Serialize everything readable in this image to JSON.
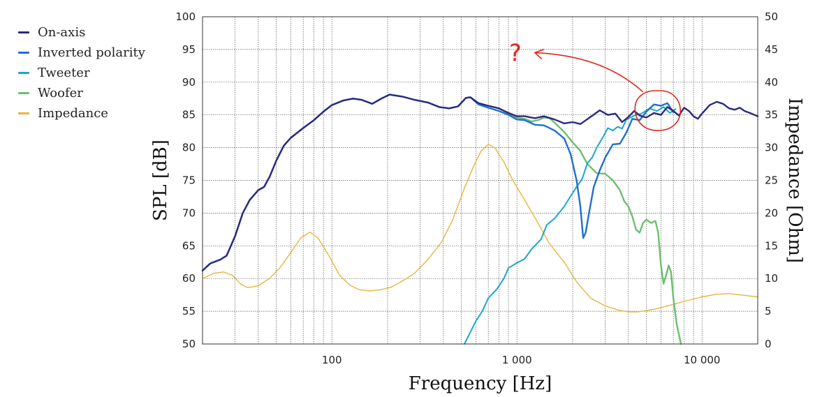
{
  "chart_data": {
    "type": "line",
    "title": "",
    "xlabel": "Frequency [Hz]",
    "ylabel": "SPL [dB]",
    "y2label": "Impedance [Ohm]",
    "xscale": "log",
    "xlim": [
      20,
      20000
    ],
    "ylim": [
      50,
      100
    ],
    "y2lim": [
      0,
      50
    ],
    "grid": true,
    "legend_position": "left-outside",
    "x_tick_labels": [
      {
        "value": 100,
        "label": "100"
      },
      {
        "value": 1000,
        "label": "1 000"
      },
      {
        "value": 10000,
        "label": "10 000"
      }
    ],
    "y_ticks": [
      50,
      55,
      60,
      65,
      70,
      75,
      80,
      85,
      90,
      95,
      100
    ],
    "y2_ticks": [
      0,
      5,
      10,
      15,
      20,
      25,
      30,
      35,
      40,
      45,
      50
    ],
    "series": [
      {
        "name": "On-axis",
        "color": "#2a2a7e",
        "axis": "left",
        "width": 2.4,
        "points": [
          [
            20,
            61.2
          ],
          [
            22,
            62.3
          ],
          [
            25,
            62.9
          ],
          [
            27,
            63.5
          ],
          [
            30,
            66.5
          ],
          [
            33,
            70
          ],
          [
            36,
            72
          ],
          [
            40,
            73.5
          ],
          [
            43,
            74
          ],
          [
            46,
            75.5
          ],
          [
            50,
            78
          ],
          [
            55,
            80.3
          ],
          [
            60,
            81.5
          ],
          [
            70,
            83
          ],
          [
            80,
            84.2
          ],
          [
            90,
            85.5
          ],
          [
            100,
            86.5
          ],
          [
            115,
            87.2
          ],
          [
            130,
            87.5
          ],
          [
            145,
            87.3
          ],
          [
            165,
            86.7
          ],
          [
            185,
            87.5
          ],
          [
            205,
            88.1
          ],
          [
            240,
            87.8
          ],
          [
            280,
            87.3
          ],
          [
            330,
            86.9
          ],
          [
            380,
            86.2
          ],
          [
            430,
            86
          ],
          [
            480,
            86.3
          ],
          [
            530,
            87.6
          ],
          [
            560,
            87.7
          ],
          [
            620,
            86.8
          ],
          [
            700,
            86.4
          ],
          [
            800,
            86
          ],
          [
            900,
            85.3
          ],
          [
            1000,
            84.8
          ],
          [
            1100,
            84.8
          ],
          [
            1250,
            84.5
          ],
          [
            1400,
            84.8
          ],
          [
            1600,
            84.3
          ],
          [
            1800,
            83.7
          ],
          [
            2000,
            83.9
          ],
          [
            2200,
            83.6
          ],
          [
            2500,
            84.7
          ],
          [
            2800,
            85.7
          ],
          [
            3100,
            85
          ],
          [
            3400,
            85.2
          ],
          [
            3700,
            83.9
          ],
          [
            4000,
            84.7
          ],
          [
            4300,
            85.6
          ],
          [
            4600,
            84.9
          ],
          [
            5000,
            84.6
          ],
          [
            5500,
            85.3
          ],
          [
            6000,
            85
          ],
          [
            6500,
            86.2
          ],
          [
            7000,
            85.6
          ],
          [
            7500,
            84.9
          ],
          [
            8000,
            86.1
          ],
          [
            8500,
            85.6
          ],
          [
            9000,
            84.8
          ],
          [
            9500,
            84.4
          ],
          [
            10000,
            85.2
          ],
          [
            11000,
            86.5
          ],
          [
            12000,
            87
          ],
          [
            13000,
            86.7
          ],
          [
            14000,
            86
          ],
          [
            15000,
            85.8
          ],
          [
            16000,
            86.1
          ],
          [
            17000,
            85.6
          ],
          [
            18500,
            85.2
          ],
          [
            20000,
            84.8
          ]
        ]
      },
      {
        "name": "Inverted polarity",
        "color": "#1e6fd0",
        "axis": "left",
        "width": 2.4,
        "points": [
          [
            20,
            61.2
          ],
          [
            22,
            62.3
          ],
          [
            25,
            62.9
          ],
          [
            27,
            63.5
          ],
          [
            30,
            66.5
          ],
          [
            33,
            70
          ],
          [
            36,
            72
          ],
          [
            40,
            73.5
          ],
          [
            43,
            74
          ],
          [
            46,
            75.5
          ],
          [
            50,
            78
          ],
          [
            55,
            80.3
          ],
          [
            60,
            81.5
          ],
          [
            70,
            83
          ],
          [
            80,
            84.2
          ],
          [
            90,
            85.5
          ],
          [
            100,
            86.5
          ],
          [
            115,
            87.2
          ],
          [
            130,
            87.5
          ],
          [
            145,
            87.3
          ],
          [
            165,
            86.7
          ],
          [
            185,
            87.5
          ],
          [
            205,
            88.1
          ],
          [
            240,
            87.8
          ],
          [
            280,
            87.3
          ],
          [
            330,
            86.9
          ],
          [
            380,
            86.2
          ],
          [
            430,
            86
          ],
          [
            480,
            86.3
          ],
          [
            530,
            87.6
          ],
          [
            560,
            87.7
          ],
          [
            620,
            86.6
          ],
          [
            700,
            86.1
          ],
          [
            800,
            85.6
          ],
          [
            900,
            85
          ],
          [
            1000,
            84.3
          ],
          [
            1100,
            84.2
          ],
          [
            1250,
            83.5
          ],
          [
            1400,
            83.4
          ],
          [
            1600,
            82.6
          ],
          [
            1800,
            81.4
          ],
          [
            1950,
            79
          ],
          [
            2100,
            75
          ],
          [
            2200,
            71
          ],
          [
            2280,
            66.2
          ],
          [
            2350,
            67
          ],
          [
            2450,
            70
          ],
          [
            2600,
            74
          ],
          [
            2800,
            76.5
          ],
          [
            3000,
            78.5
          ],
          [
            3300,
            80.5
          ],
          [
            3600,
            80.6
          ],
          [
            3900,
            82.3
          ],
          [
            4200,
            84.4
          ],
          [
            4600,
            84.2
          ],
          [
            5000,
            85.5
          ],
          [
            5500,
            86.6
          ],
          [
            6000,
            86.4
          ],
          [
            6500,
            86.8
          ],
          [
            7000,
            85.4
          ]
        ]
      },
      {
        "name": "Tweeter",
        "color": "#1aa8c8",
        "axis": "left",
        "width": 2,
        "points": [
          [
            520,
            50
          ],
          [
            560,
            51.8
          ],
          [
            600,
            53.5
          ],
          [
            650,
            55
          ],
          [
            700,
            57
          ],
          [
            780,
            58.4
          ],
          [
            850,
            60
          ],
          [
            900,
            61.6
          ],
          [
            1000,
            62.4
          ],
          [
            1100,
            63
          ],
          [
            1200,
            64.5
          ],
          [
            1350,
            66
          ],
          [
            1450,
            68.2
          ],
          [
            1600,
            69.2
          ],
          [
            1800,
            71
          ],
          [
            1950,
            72.6
          ],
          [
            2100,
            74
          ],
          [
            2250,
            75.2
          ],
          [
            2400,
            77.6
          ],
          [
            2550,
            78.5
          ],
          [
            2700,
            80
          ],
          [
            2900,
            81.5
          ],
          [
            3100,
            83
          ],
          [
            3300,
            82.6
          ],
          [
            3500,
            83.2
          ],
          [
            3700,
            82.9
          ],
          [
            3900,
            84.3
          ],
          [
            4300,
            84.9
          ],
          [
            4700,
            85.2
          ],
          [
            5200,
            86
          ],
          [
            5700,
            85.6
          ],
          [
            6200,
            86.2
          ],
          [
            6700,
            85.3
          ],
          [
            7200,
            85.9
          ]
        ]
      },
      {
        "name": "Woofer",
        "color": "#6cbf6c",
        "axis": "left",
        "width": 2.4,
        "points": [
          [
            800,
            86
          ],
          [
            900,
            85.2
          ],
          [
            1000,
            84.6
          ],
          [
            1100,
            84.4
          ],
          [
            1200,
            84
          ],
          [
            1300,
            84.2
          ],
          [
            1400,
            84.6
          ],
          [
            1500,
            84.5
          ],
          [
            1600,
            83.8
          ],
          [
            1800,
            82.4
          ],
          [
            2000,
            80.8
          ],
          [
            2200,
            79.5
          ],
          [
            2400,
            77.5
          ],
          [
            2700,
            76.1
          ],
          [
            3000,
            76
          ],
          [
            3300,
            75
          ],
          [
            3600,
            73.5
          ],
          [
            3800,
            71.8
          ],
          [
            4000,
            71
          ],
          [
            4200,
            69.5
          ],
          [
            4400,
            67.5
          ],
          [
            4600,
            67
          ],
          [
            4800,
            68.5
          ],
          [
            5000,
            69
          ],
          [
            5300,
            68.5
          ],
          [
            5600,
            68.8
          ],
          [
            5800,
            67
          ],
          [
            6000,
            62
          ],
          [
            6200,
            59.2
          ],
          [
            6400,
            60.5
          ],
          [
            6600,
            62
          ],
          [
            6800,
            61
          ],
          [
            7000,
            57
          ],
          [
            7300,
            53
          ],
          [
            7700,
            50
          ]
        ]
      },
      {
        "name": "Impedance",
        "color": "#e7b53e",
        "axis": "right",
        "width": 1.4,
        "points": [
          [
            20,
            10
          ],
          [
            23,
            10.8
          ],
          [
            26,
            11
          ],
          [
            29,
            10.5
          ],
          [
            32,
            9.2
          ],
          [
            35,
            8.6
          ],
          [
            40,
            8.9
          ],
          [
            46,
            10
          ],
          [
            53,
            11.8
          ],
          [
            60,
            14
          ],
          [
            68,
            16.2
          ],
          [
            76,
            17.1
          ],
          [
            84,
            16.2
          ],
          [
            95,
            13.8
          ],
          [
            110,
            10.5
          ],
          [
            125,
            9
          ],
          [
            140,
            8.3
          ],
          [
            160,
            8.1
          ],
          [
            185,
            8.3
          ],
          [
            210,
            8.7
          ],
          [
            240,
            9.6
          ],
          [
            280,
            10.8
          ],
          [
            330,
            12.9
          ],
          [
            390,
            15.5
          ],
          [
            450,
            19
          ],
          [
            520,
            23.8
          ],
          [
            580,
            27
          ],
          [
            640,
            29.5
          ],
          [
            700,
            30.5
          ],
          [
            760,
            30
          ],
          [
            850,
            27.8
          ],
          [
            950,
            25
          ],
          [
            1100,
            22
          ],
          [
            1300,
            18.5
          ],
          [
            1500,
            15.3
          ],
          [
            1800,
            12.5
          ],
          [
            2100,
            9.5
          ],
          [
            2500,
            7
          ],
          [
            3000,
            5.8
          ],
          [
            3500,
            5.2
          ],
          [
            4000,
            4.9
          ],
          [
            4500,
            4.9
          ],
          [
            5500,
            5.3
          ],
          [
            6500,
            5.8
          ],
          [
            8000,
            6.5
          ],
          [
            10000,
            7.2
          ],
          [
            12000,
            7.6
          ],
          [
            14000,
            7.7
          ],
          [
            16000,
            7.5
          ],
          [
            20000,
            7.2
          ]
        ]
      }
    ],
    "annotations": [
      {
        "type": "circle",
        "color": "#e0251d",
        "center": [
          5600,
          85.5
        ]
      },
      {
        "type": "arrow",
        "color": "#e0251d",
        "from": [
          4800,
          88.5
        ],
        "to": [
          1250,
          94.5
        ]
      },
      {
        "type": "text",
        "color": "#e0251d",
        "text": "?",
        "at": [
          980,
          94.5
        ]
      }
    ]
  }
}
